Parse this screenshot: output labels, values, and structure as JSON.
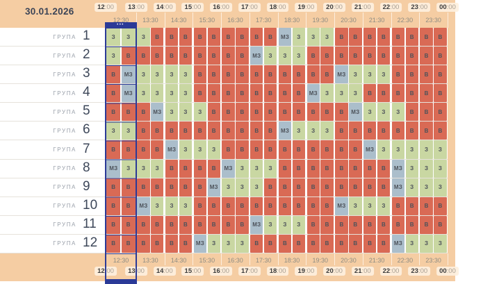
{
  "header": {
    "date": "30.01.2026"
  },
  "timeline": {
    "hours": [
      "12:00",
      "13:00",
      "14:00",
      "15:00",
      "16:00",
      "17:00",
      "18:00",
      "19:00",
      "20:00",
      "21:00",
      "22:00",
      "23:00",
      "00:00"
    ],
    "half_hours": [
      "12:30",
      "13:30",
      "14:30",
      "15:30",
      "16:30",
      "17:30",
      "18:30",
      "19:30",
      "20:30",
      "21:30",
      "22:30",
      "23:30"
    ]
  },
  "selection": {
    "dots": "•••"
  },
  "colors": {
    "band": "#f5cda3",
    "navy": "#2b3a97",
    "cell_B": "#d96a55",
    "cell_Z": "#c9d7a2",
    "cell_MZ": "#abbecb"
  },
  "groups": [
    {
      "label": "ГРУПА",
      "number": "1",
      "slots": [
        "З",
        "З",
        "З",
        "В",
        "В",
        "В",
        "В",
        "В",
        "В",
        "В",
        "В",
        "В",
        "МЗ",
        "З",
        "З",
        "З",
        "В",
        "В",
        "В",
        "В",
        "В",
        "В",
        "В",
        "В"
      ]
    },
    {
      "label": "ГРУПА",
      "number": "2",
      "slots": [
        "З",
        "В",
        "В",
        "В",
        "В",
        "В",
        "В",
        "В",
        "В",
        "В",
        "МЗ",
        "З",
        "З",
        "З",
        "В",
        "В",
        "В",
        "В",
        "В",
        "В",
        "В",
        "В",
        "В",
        "В"
      ]
    },
    {
      "label": "ГРУПА",
      "number": "3",
      "slots": [
        "В",
        "МЗ",
        "З",
        "З",
        "З",
        "З",
        "В",
        "В",
        "В",
        "В",
        "В",
        "В",
        "В",
        "В",
        "В",
        "В",
        "МЗ",
        "З",
        "З",
        "З",
        "В",
        "В",
        "В",
        "В"
      ]
    },
    {
      "label": "ГРУПА",
      "number": "4",
      "slots": [
        "В",
        "МЗ",
        "З",
        "З",
        "З",
        "З",
        "В",
        "В",
        "В",
        "В",
        "В",
        "В",
        "В",
        "В",
        "МЗ",
        "З",
        "З",
        "З",
        "В",
        "В",
        "В",
        "В",
        "В",
        "В"
      ]
    },
    {
      "label": "ГРУПА",
      "number": "5",
      "slots": [
        "В",
        "В",
        "В",
        "МЗ",
        "З",
        "З",
        "З",
        "В",
        "В",
        "В",
        "В",
        "В",
        "В",
        "В",
        "В",
        "В",
        "В",
        "МЗ",
        "З",
        "З",
        "З",
        "В",
        "В",
        "В"
      ]
    },
    {
      "label": "ГРУПА",
      "number": "6",
      "slots": [
        "З",
        "З",
        "В",
        "В",
        "В",
        "В",
        "В",
        "В",
        "В",
        "В",
        "В",
        "В",
        "МЗ",
        "З",
        "З",
        "З",
        "В",
        "В",
        "В",
        "В",
        "В",
        "В",
        "В",
        "В"
      ]
    },
    {
      "label": "ГРУПА",
      "number": "7",
      "slots": [
        "В",
        "В",
        "В",
        "В",
        "МЗ",
        "З",
        "З",
        "З",
        "В",
        "В",
        "В",
        "В",
        "В",
        "В",
        "В",
        "В",
        "В",
        "В",
        "МЗ",
        "З",
        "З",
        "З",
        "З",
        "З"
      ]
    },
    {
      "label": "ГРУПА",
      "number": "8",
      "slots": [
        "МЗ",
        "З",
        "З",
        "З",
        "В",
        "В",
        "В",
        "В",
        "МЗ",
        "З",
        "З",
        "З",
        "В",
        "В",
        "В",
        "В",
        "В",
        "В",
        "В",
        "В",
        "МЗ",
        "З",
        "З",
        "З"
      ]
    },
    {
      "label": "ГРУПА",
      "number": "9",
      "slots": [
        "В",
        "В",
        "В",
        "В",
        "В",
        "В",
        "В",
        "МЗ",
        "З",
        "З",
        "З",
        "В",
        "В",
        "В",
        "В",
        "В",
        "В",
        "В",
        "В",
        "В",
        "МЗ",
        "З",
        "З",
        "З"
      ]
    },
    {
      "label": "ГРУПА",
      "number": "10",
      "slots": [
        "В",
        "В",
        "МЗ",
        "З",
        "З",
        "З",
        "В",
        "В",
        "В",
        "В",
        "В",
        "В",
        "В",
        "В",
        "В",
        "В",
        "МЗ",
        "З",
        "З",
        "З",
        "В",
        "В",
        "В",
        "В"
      ]
    },
    {
      "label": "ГРУПА",
      "number": "11",
      "slots": [
        "В",
        "В",
        "В",
        "В",
        "В",
        "В",
        "В",
        "В",
        "В",
        "В",
        "МЗ",
        "З",
        "З",
        "З",
        "В",
        "В",
        "В",
        "В",
        "В",
        "В",
        "В",
        "В",
        "В",
        "В"
      ]
    },
    {
      "label": "ГРУПА",
      "number": "12",
      "slots": [
        "В",
        "В",
        "В",
        "В",
        "В",
        "В",
        "МЗ",
        "З",
        "З",
        "З",
        "В",
        "В",
        "В",
        "В",
        "В",
        "В",
        "В",
        "В",
        "В",
        "В",
        "МЗ",
        "З",
        "З",
        "З"
      ]
    }
  ]
}
